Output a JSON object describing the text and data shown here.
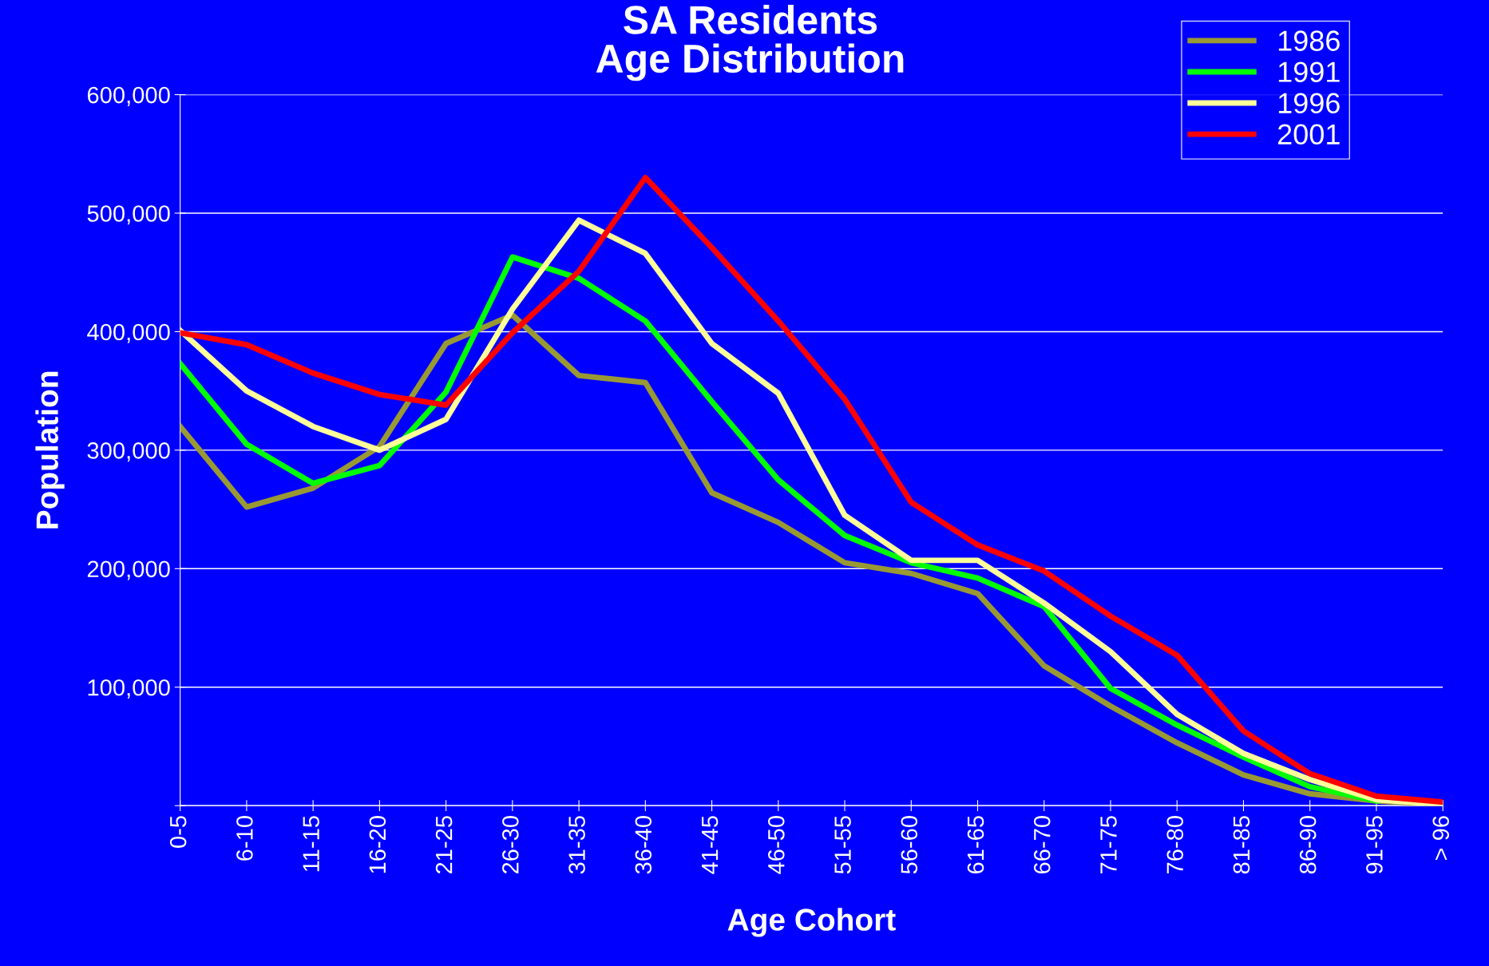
{
  "chart_data": {
    "type": "line",
    "title": "SA Residents\nAge Distribution",
    "xlabel": "Age Cohort",
    "ylabel": "Population",
    "categories": [
      "0-5",
      "6-10",
      "11-15",
      "16-20",
      "21-25",
      "26-30",
      "31-35",
      "36-40",
      "41-45",
      "46-50",
      "51-55",
      "56-60",
      "61-65",
      "66-70",
      "71-75",
      "76-80",
      "81-85",
      "86-90",
      "91-95",
      "> 96"
    ],
    "series": [
      {
        "name": "1986",
        "color": "#999933",
        "values": [
          320000,
          252000,
          268000,
          303000,
          390000,
          414000,
          363000,
          357000,
          264000,
          239000,
          205000,
          196000,
          179000,
          118000,
          84000,
          53000,
          26000,
          10000,
          4000,
          1000
        ]
      },
      {
        "name": "1991",
        "color": "#00ff00",
        "values": [
          373000,
          305000,
          272000,
          287000,
          349000,
          463000,
          445000,
          409000,
          341000,
          275000,
          228000,
          205000,
          192000,
          168000,
          99000,
          68000,
          41000,
          16000,
          4000,
          null
        ]
      },
      {
        "name": "1996",
        "color": "#ffff99",
        "values": [
          401000,
          350000,
          320000,
          300000,
          326000,
          419000,
          494000,
          466000,
          390000,
          348000,
          245000,
          207000,
          207000,
          171000,
          130000,
          77000,
          44000,
          22000,
          5000,
          1000
        ]
      },
      {
        "name": "2001",
        "color": "#ff0000",
        "values": [
          399000,
          389000,
          365000,
          347000,
          338000,
          399000,
          451000,
          530000,
          471000,
          409000,
          343000,
          256000,
          220000,
          198000,
          160000,
          127000,
          63000,
          27000,
          8000,
          3000
        ]
      }
    ],
    "ylim": [
      0,
      600000
    ],
    "yticks": [
      {
        "value": 0,
        "label": null
      },
      {
        "value": 100000,
        "label": "100,000"
      },
      {
        "value": 200000,
        "label": "200,000"
      },
      {
        "value": 300000,
        "label": "300,000"
      },
      {
        "value": 400000,
        "label": "400,000"
      },
      {
        "value": 500000,
        "label": "500,000"
      },
      {
        "value": 600000,
        "label": "600,000"
      }
    ],
    "grid": "y",
    "legend": "top right",
    "marker": "none",
    "line_style": "solid"
  }
}
